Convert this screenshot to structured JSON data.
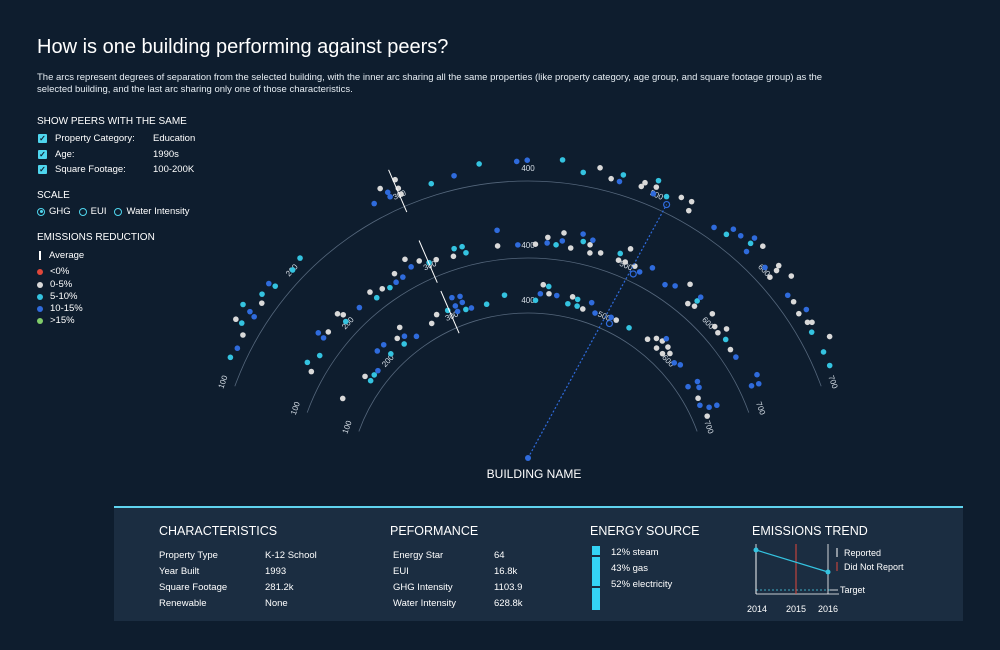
{
  "title": "How is one building performing against peers?",
  "description": "The arcs represent degrees of separation from the selected building, with the inner arc sharing all the same properties (like property category, age group, and square footage group) as the selected building, and the last arc sharing only one of those characteristics.",
  "filters": {
    "heading": "SHOW PEERS WITH THE SAME",
    "items": [
      {
        "label": "Property Category:",
        "value": "Education",
        "checked": true
      },
      {
        "label": "Age:",
        "value": "1990s",
        "checked": true
      },
      {
        "label": "Square Footage:",
        "value": "100-200K",
        "checked": true
      }
    ]
  },
  "scale": {
    "heading": "SCALE",
    "options": [
      "GHG",
      "EUI",
      "Water Intensity"
    ],
    "selected": "GHG"
  },
  "legend": {
    "heading": "EMISSIONS REDUCTION",
    "average_label": "Average",
    "items": [
      {
        "label": "<0%",
        "color": "#e0473a"
      },
      {
        "label": "0-5%",
        "color": "#d9d9d9"
      },
      {
        "label": "5-10%",
        "color": "#34c3e0"
      },
      {
        "label": "10-15%",
        "color": "#2f6bdc"
      },
      {
        "label": ">15%",
        "color": "#80cc6a"
      }
    ]
  },
  "chart_data": {
    "type": "scatter",
    "center_label": "BUILDING NAME",
    "arcs": [
      {
        "ticks": [
          "100",
          "200",
          "300",
          "400",
          "500",
          "600",
          "700"
        ]
      },
      {
        "ticks": [
          "100",
          "200",
          "300",
          "400",
          "500",
          "600",
          "700"
        ]
      },
      {
        "ticks": [
          "100",
          "200",
          "300",
          "400",
          "500",
          "600",
          "700"
        ]
      }
    ],
    "averages": [
      300,
      300,
      300
    ],
    "selected_value": 510
  },
  "panel": {
    "characteristics": {
      "heading": "CHARACTERISTICS",
      "rows": [
        {
          "label": "Property Type",
          "value": "K-12 School"
        },
        {
          "label": "Year Built",
          "value": "1993"
        },
        {
          "label": "Square Footage",
          "value": "281.2k"
        },
        {
          "label": "Renewable",
          "value": "None"
        }
      ]
    },
    "performance": {
      "heading": "PEFORMANCE",
      "rows": [
        {
          "label": "Energy Star",
          "value": "64"
        },
        {
          "label": "EUI",
          "value": "16.8k"
        },
        {
          "label": "GHG Intensity",
          "value": "1103.9"
        },
        {
          "label": "Water Intensity",
          "value": "628.8k"
        }
      ]
    },
    "energy_source": {
      "heading": "ENERGY SOURCE",
      "items": [
        {
          "label": "12% steam",
          "share": 12
        },
        {
          "label": "43% gas",
          "share": 43
        },
        {
          "label": "52% electricity",
          "share": 52
        }
      ],
      "color": "#34d3f5"
    },
    "emissions_trend": {
      "heading": "EMISSIONS TREND",
      "years": [
        "2014",
        "2015",
        "2016"
      ],
      "reported_label": "Reported",
      "not_reported_label": "Did Not Report",
      "target_label": "Target",
      "not_reported_year": "2015"
    }
  }
}
